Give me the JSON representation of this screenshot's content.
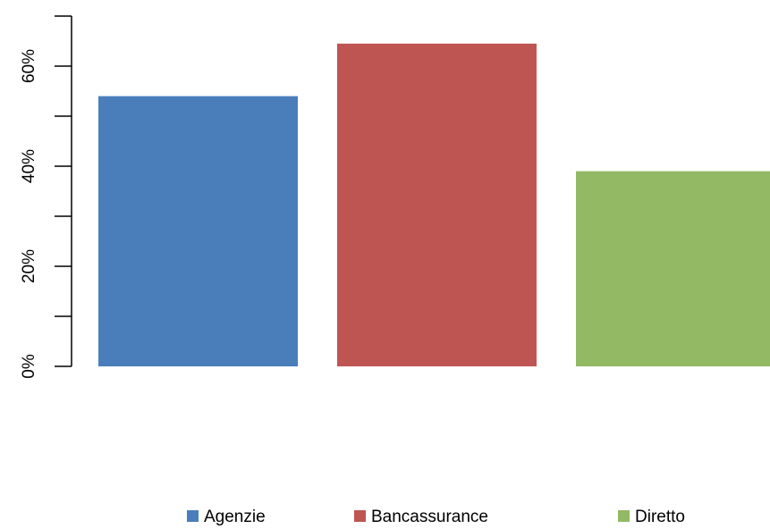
{
  "chart_data": {
    "type": "bar",
    "categories": [
      "Agenzie",
      "Bancassurance",
      "Diretto"
    ],
    "values": [
      54,
      64.5,
      39
    ],
    "colors": [
      "#4a7ebb",
      "#be5553",
      "#93b964"
    ],
    "ylim": [
      0,
      70
    ],
    "y_ticks": [
      0,
      10,
      20,
      30,
      40,
      50,
      60,
      70
    ],
    "y_tick_labels": [
      {
        "value": 0,
        "label": "0%"
      },
      {
        "value": 20,
        "label": "20%"
      },
      {
        "value": 40,
        "label": "40%"
      },
      {
        "value": 60,
        "label": "60%"
      }
    ],
    "title": "",
    "xlabel": "",
    "ylabel": "",
    "grid": false,
    "legend": {
      "placement": "bottom",
      "entries": [
        "Agenzie",
        "Bancassurance",
        "Diretto"
      ]
    }
  }
}
